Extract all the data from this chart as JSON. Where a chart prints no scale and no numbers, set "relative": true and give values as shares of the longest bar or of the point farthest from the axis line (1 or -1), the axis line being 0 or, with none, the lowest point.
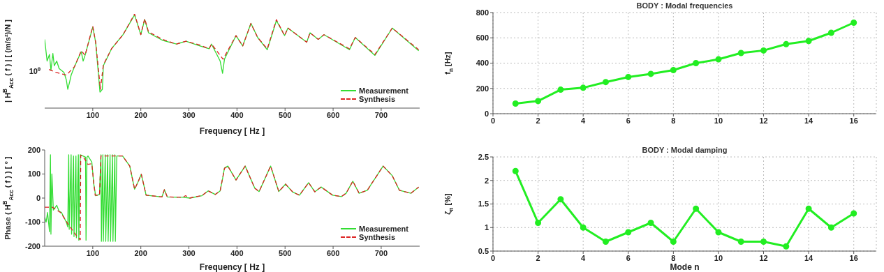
{
  "chart_data": [
    {
      "type": "line",
      "relative": true,
      "xlabel": "Frequency [ Hz ]",
      "ylabel": "| H$^{B}$$_{Acc}$ ( f ) |  [ (m/s²)/N ]",
      "xlim": [
        0,
        780
      ],
      "xticks": [
        100,
        200,
        300,
        400,
        500,
        600,
        700
      ],
      "annotations": [
        "10⁰"
      ],
      "legend": "bottom right",
      "series": [
        {
          "name": "Measurement",
          "color": "#33dd33",
          "x": [
            0,
            5,
            10,
            13,
            17,
            20,
            25,
            30,
            40,
            45,
            48,
            52,
            55,
            62,
            76,
            80,
            84,
            100,
            106,
            115,
            120,
            122,
            139,
            163,
            187,
            200,
            208,
            216,
            245,
            274,
            294,
            323,
            342,
            347,
            365,
            370,
            374,
            398,
            412,
            429,
            443,
            463,
            482,
            499,
            506,
            545,
            552,
            569,
            581,
            634,
            646,
            687,
            723,
            778
          ],
          "values": [
            0.73,
            0.5,
            0.57,
            0.4,
            0.58,
            0.45,
            0.5,
            0.42,
            0.38,
            0.3,
            0.2,
            0.28,
            0.35,
            0.44,
            0.6,
            0.5,
            0.56,
            0.86,
            0.7,
            0.17,
            0.2,
            0.45,
            0.63,
            0.78,
            0.99,
            0.78,
            0.94,
            0.8,
            0.72,
            0.68,
            0.71,
            0.66,
            0.63,
            0.68,
            0.5,
            0.37,
            0.52,
            0.77,
            0.66,
            0.9,
            0.75,
            0.62,
            0.93,
            0.77,
            0.85,
            0.7,
            0.8,
            0.73,
            0.78,
            0.62,
            0.75,
            0.56,
            0.85,
            0.61
          ]
        },
        {
          "name": "Synthesis",
          "color": "#dd2222",
          "line_style": "dashed",
          "x": [
            9,
            23,
            45,
            62,
            76,
            84,
            100,
            106,
            116,
            122,
            139,
            163,
            187,
            200,
            208,
            216,
            245,
            274,
            294,
            323,
            342,
            347,
            371,
            398,
            412,
            429,
            443,
            463,
            482,
            499,
            506,
            545,
            552,
            569,
            581,
            634,
            646,
            687,
            723,
            778
          ],
          "values": [
            0.41,
            0.38,
            0.35,
            0.44,
            0.61,
            0.56,
            0.87,
            0.7,
            0.2,
            0.46,
            0.63,
            0.78,
            1,
            0.78,
            0.95,
            0.81,
            0.73,
            0.68,
            0.71,
            0.67,
            0.63,
            0.68,
            0.52,
            0.77,
            0.66,
            0.9,
            0.75,
            0.63,
            0.94,
            0.77,
            0.85,
            0.7,
            0.8,
            0.73,
            0.78,
            0.63,
            0.75,
            0.57,
            0.85,
            0.62
          ]
        }
      ]
    },
    {
      "type": "line",
      "title": "BODY : Modal frequencies",
      "ylabel": "f$_{n}$ [Hz]",
      "x": [
        1,
        2,
        3,
        4,
        5,
        6,
        7,
        8,
        9,
        10,
        11,
        12,
        13,
        14,
        15,
        16
      ],
      "values": [
        80,
        100,
        190,
        205,
        250,
        290,
        315,
        345,
        400,
        430,
        480,
        500,
        550,
        575,
        640,
        720
      ],
      "color": "#22ee22",
      "xlim": [
        0,
        17
      ],
      "xticks": [
        0,
        2,
        4,
        6,
        8,
        10,
        12,
        14,
        16
      ],
      "ylim": [
        0,
        800
      ],
      "yticks": [
        0,
        200,
        400,
        600,
        800
      ],
      "grid": true,
      "marker": "circle"
    },
    {
      "type": "line",
      "xlabel": "Frequency [ Hz ]",
      "ylabel": "Phase ( H$^{B}$$_{Acc}$ ( f ) ) [ ° ]",
      "xlim": [
        0,
        780
      ],
      "xticks": [
        100,
        200,
        300,
        400,
        500,
        600,
        700
      ],
      "ylim": [
        -200,
        200
      ],
      "yticks": [
        -200,
        -100,
        0,
        100,
        200
      ],
      "legend": "bottom right",
      "series": [
        {
          "name": "Measurement",
          "color": "#33dd33",
          "x": [
            0,
            3,
            6,
            10,
            12,
            13,
            15,
            18,
            25,
            30,
            35,
            40,
            45,
            48,
            50,
            51,
            55,
            56,
            60,
            61,
            65,
            66,
            70,
            71,
            74,
            85,
            86,
            88,
            90,
            98,
            102,
            106,
            114,
            117,
            118,
            121,
            122,
            126,
            127,
            131,
            132,
            136,
            137,
            141,
            142,
            146,
            147,
            150,
            162,
            177,
            187,
            194,
            201,
            211,
            244,
            249,
            255,
            288,
            302,
            327,
            340,
            355,
            365,
            370,
            374,
            381,
            398,
            417,
            437,
            446,
            470,
            487,
            501,
            516,
            530,
            549,
            562,
            575,
            599,
            617,
            627,
            641,
            654,
            671,
            704,
            723,
            738,
            762,
            778
          ],
          "values": [
            -80,
            -100,
            -60,
            -140,
            180,
            -150,
            100,
            -50,
            -30,
            -55,
            -60,
            -80,
            -100,
            -120,
            180,
            -130,
            180,
            -150,
            175,
            -160,
            175,
            -165,
            180,
            -175,
            180,
            170,
            -175,
            170,
            175,
            150,
            60,
            10,
            15,
            180,
            -180,
            180,
            -180,
            180,
            -180,
            180,
            -180,
            180,
            -180,
            180,
            -180,
            180,
            -180,
            175,
            175,
            133,
            37,
            66,
            99,
            12,
            5,
            35,
            5,
            3,
            0,
            10,
            30,
            15,
            30,
            80,
            125,
            133,
            75,
            133,
            41,
            27,
            133,
            27,
            58,
            25,
            12,
            64,
            26,
            46,
            12,
            6,
            20,
            70,
            20,
            32,
            133,
            93,
            32,
            20,
            46
          ]
        },
        {
          "name": "Synthesis",
          "color": "#dd2222",
          "line_style": "dashed",
          "x": [
            0,
            16,
            33,
            52,
            66,
            74,
            75,
            80,
            90,
            98,
            102,
            105,
            114,
            117,
            162,
            177,
            187,
            194,
            201,
            211,
            244,
            249,
            255,
            288,
            293,
            302,
            312,
            327,
            340,
            355,
            365,
            374,
            381,
            398,
            417,
            437,
            446,
            470,
            487,
            501,
            516,
            530,
            549,
            562,
            575,
            599,
            617,
            627,
            641,
            654,
            671,
            704,
            723,
            738,
            762,
            778
          ],
          "values": [
            -38,
            -38,
            -60,
            -118,
            -156,
            -173,
            178,
            172,
            140,
            143,
            66,
            12,
            12,
            175,
            175,
            133,
            37,
            66,
            99,
            12,
            5,
            35,
            5,
            3,
            10,
            0,
            5,
            10,
            30,
            15,
            30,
            123,
            133,
            75,
            133,
            41,
            27,
            133,
            27,
            58,
            25,
            12,
            64,
            26,
            46,
            12,
            6,
            20,
            70,
            20,
            32,
            133,
            93,
            32,
            20,
            46
          ]
        }
      ]
    },
    {
      "type": "line",
      "title": "BODY : Modal damping",
      "xlabel": "Mode n",
      "ylabel": "ζ$_{n}$ [%]",
      "x": [
        1,
        2,
        3,
        4,
        5,
        6,
        7,
        8,
        9,
        10,
        11,
        12,
        13,
        14,
        15,
        16
      ],
      "values": [
        2.2,
        1.1,
        1.6,
        1.0,
        0.7,
        0.9,
        1.1,
        0.7,
        1.4,
        0.9,
        0.7,
        0.7,
        0.6,
        1.4,
        1.0,
        1.3
      ],
      "color": "#22ee22",
      "xlim": [
        0,
        17
      ],
      "xticks": [
        0,
        2,
        4,
        6,
        8,
        10,
        12,
        14,
        16
      ],
      "ylim": [
        0.5,
        2.5
      ],
      "yticks": [
        0.5,
        1,
        1.5,
        2,
        2.5
      ],
      "grid": true,
      "marker": "circle"
    }
  ]
}
